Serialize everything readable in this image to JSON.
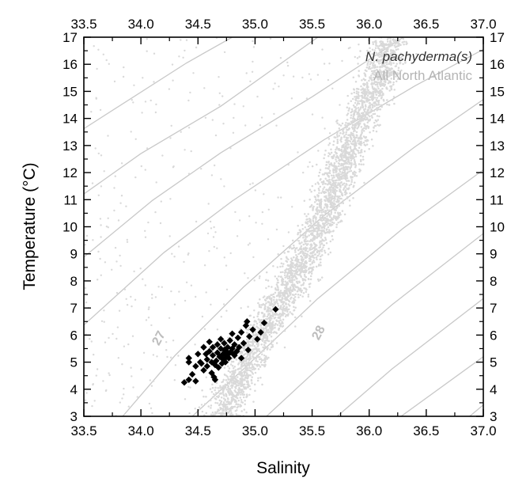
{
  "chart_data": {
    "type": "scatter",
    "title": "",
    "xlabel": "Salinity",
    "ylabel": "Temperature (°C)",
    "xlim": [
      33.5,
      37.0
    ],
    "ylim": [
      3,
      17
    ],
    "x_ticks": [
      "33.5",
      "34.0",
      "34.5",
      "35.0",
      "35.5",
      "36.0",
      "36.5",
      "37.0"
    ],
    "y_ticks": [
      "3",
      "4",
      "5",
      "6",
      "7",
      "8",
      "9",
      "10",
      "11",
      "12",
      "13",
      "14",
      "15",
      "16",
      "17"
    ],
    "grid": false,
    "mirrored_axes": true,
    "legend": {
      "placement": "top-right",
      "entries": [
        {
          "label": "N. pachyderma(s)",
          "color": "#333333",
          "italic": true
        },
        {
          "label": "All North Atlantic",
          "color": "#b4b4b4",
          "italic": false
        }
      ]
    },
    "isopycnals": {
      "color": "#c8c8c8",
      "labels": [
        {
          "text": "27",
          "at": {
            "x": 34.15,
            "y": 5.9
          }
        },
        {
          "text": "28",
          "at": {
            "x": 35.55,
            "y": 6.1
          }
        }
      ],
      "lines": [
        {
          "points": [
            [
              33.5,
              13.62
            ],
            [
              34.4,
              16.05
            ],
            [
              34.8,
              17.0
            ]
          ]
        },
        {
          "points": [
            [
              33.5,
              11.21
            ],
            [
              34.0,
              12.7
            ],
            [
              34.7,
              14.45
            ],
            [
              35.55,
              17.0
            ]
          ]
        },
        {
          "points": [
            [
              33.5,
              8.88
            ],
            [
              34.1,
              10.97
            ],
            [
              34.7,
              12.73
            ],
            [
              35.5,
              14.8
            ],
            [
              36.3,
              17.0
            ]
          ]
        },
        {
          "points": [
            [
              33.5,
              6.37
            ],
            [
              34.2,
              9.04
            ],
            [
              34.8,
              10.95
            ],
            [
              35.6,
              13.2
            ],
            [
              36.4,
              15.2
            ],
            [
              37.0,
              16.55
            ]
          ]
        },
        {
          "points": [
            [
              33.84,
              3.0
            ],
            [
              34.3,
              5.25
            ],
            [
              34.9,
              7.78
            ],
            [
              35.6,
              10.4
            ],
            [
              36.4,
              12.95
            ],
            [
              37.0,
              14.7
            ]
          ]
        },
        {
          "points": [
            [
              34.45,
              3.0
            ],
            [
              34.9,
              4.75
            ],
            [
              35.55,
              7.35
            ],
            [
              36.3,
              9.95
            ],
            [
              37.0,
              12.1
            ]
          ]
        },
        {
          "points": [
            [
              35.1,
              3.0
            ],
            [
              35.6,
              4.95
            ],
            [
              36.2,
              7.12
            ],
            [
              37.0,
              9.75
            ]
          ]
        },
        {
          "points": [
            [
              35.72,
              3.0
            ],
            [
              36.2,
              4.75
            ],
            [
              37.0,
              7.35
            ]
          ]
        },
        {
          "points": [
            [
              36.28,
              3.0
            ],
            [
              37.0,
              5.2
            ]
          ]
        },
        {
          "points": [
            [
              36.88,
              3.0
            ],
            [
              37.0,
              3.42
            ]
          ]
        }
      ]
    },
    "series": [
      {
        "name": "All North Atlantic",
        "color": "#d9d9d9",
        "marker": "dot",
        "density": {
          "ridge": [
            [
              3.0,
              34.72
            ],
            [
              4.0,
              34.82
            ],
            [
              5.0,
              34.93
            ],
            [
              6.0,
              35.05
            ],
            [
              7.0,
              35.2
            ],
            [
              8.0,
              35.33
            ],
            [
              9.0,
              35.45
            ],
            [
              10.0,
              35.57
            ],
            [
              11.0,
              35.66
            ],
            [
              12.0,
              35.74
            ],
            [
              13.0,
              35.82
            ],
            [
              14.0,
              35.93
            ],
            [
              15.0,
              36.04
            ],
            [
              16.0,
              36.12
            ],
            [
              17.0,
              36.2
            ]
          ],
          "points_along_ridge": 3600,
          "ridge_spread": 0.09,
          "outlier_points": 380,
          "random_seed": 7
        }
      },
      {
        "name": "N. pachyderma(s)",
        "color": "#000000",
        "marker": "diamond",
        "points": [
          [
            34.38,
            4.25
          ],
          [
            34.42,
            4.35
          ],
          [
            34.48,
            4.3
          ],
          [
            34.45,
            4.55
          ],
          [
            34.42,
            5.0
          ],
          [
            34.42,
            5.15
          ],
          [
            34.48,
            4.85
          ],
          [
            34.52,
            5.0
          ],
          [
            34.5,
            5.3
          ],
          [
            34.55,
            4.7
          ],
          [
            34.55,
            5.55
          ],
          [
            34.58,
            4.85
          ],
          [
            34.58,
            5.1
          ],
          [
            34.6,
            5.4
          ],
          [
            34.6,
            5.75
          ],
          [
            34.62,
            4.6
          ],
          [
            34.62,
            5.0
          ],
          [
            34.63,
            5.25
          ],
          [
            34.63,
            5.55
          ],
          [
            34.65,
            4.35
          ],
          [
            34.65,
            4.9
          ],
          [
            34.66,
            5.05
          ],
          [
            34.67,
            5.35
          ],
          [
            34.67,
            5.65
          ],
          [
            34.68,
            4.8
          ],
          [
            34.69,
            5.2
          ],
          [
            34.7,
            5.5
          ],
          [
            34.7,
            5.85
          ],
          [
            34.71,
            4.95
          ],
          [
            34.72,
            5.1
          ],
          [
            34.72,
            5.3
          ],
          [
            34.73,
            5.45
          ],
          [
            34.73,
            5.7
          ],
          [
            34.74,
            5.0
          ],
          [
            34.75,
            5.25
          ],
          [
            34.75,
            5.4
          ],
          [
            34.76,
            5.55
          ],
          [
            34.77,
            5.15
          ],
          [
            34.78,
            5.35
          ],
          [
            34.78,
            5.8
          ],
          [
            34.8,
            5.5
          ],
          [
            34.8,
            6.05
          ],
          [
            34.82,
            5.25
          ],
          [
            34.82,
            5.65
          ],
          [
            34.84,
            5.4
          ],
          [
            34.85,
            5.9
          ],
          [
            34.86,
            5.55
          ],
          [
            34.88,
            6.1
          ],
          [
            34.88,
            5.15
          ],
          [
            34.9,
            5.7
          ],
          [
            34.92,
            6.35
          ],
          [
            34.94,
            5.45
          ],
          [
            34.95,
            5.95
          ],
          [
            34.98,
            6.2
          ],
          [
            35.02,
            5.85
          ],
          [
            35.05,
            6.1
          ],
          [
            35.08,
            6.45
          ],
          [
            35.18,
            6.95
          ],
          [
            34.93,
            6.5
          ],
          [
            34.57,
            5.3
          ],
          [
            34.64,
            4.45
          ],
          [
            34.53,
            4.95
          ],
          [
            34.81,
            5.3
          ],
          [
            34.74,
            5.15
          ]
        ]
      }
    ]
  }
}
